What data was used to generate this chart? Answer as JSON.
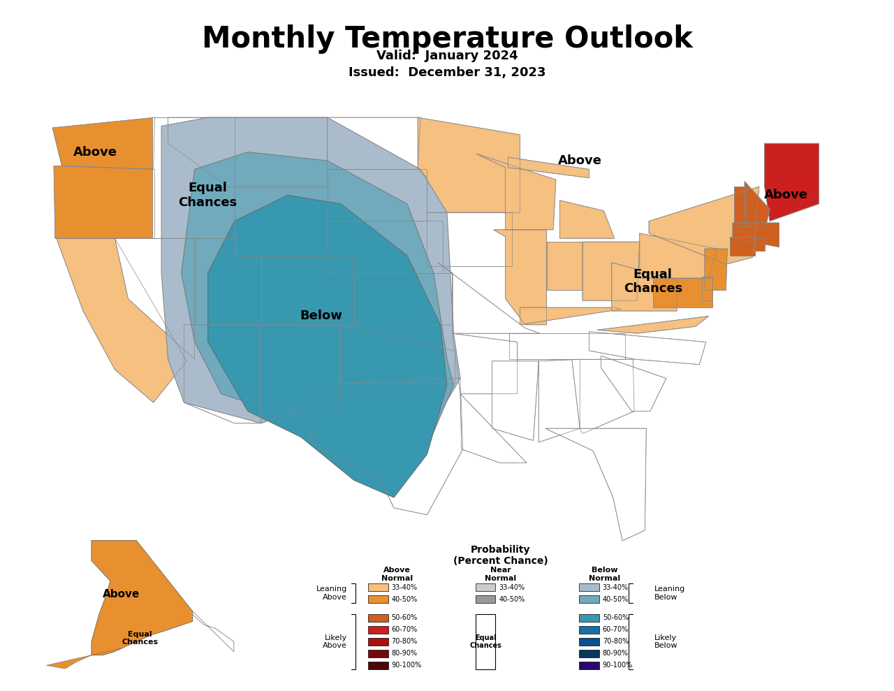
{
  "title": "Monthly Temperature Outlook",
  "valid_text": "Valid:  January 2024",
  "issued_text": "Issued:  December 31, 2023",
  "background_color": "#ffffff",
  "colors": {
    "above_33_40": "#F5C080",
    "above_40_50": "#E89030",
    "above_50_60": "#D06020",
    "above_60_70": "#CC2020",
    "above_70_80": "#AA1010",
    "above_80_90": "#780808",
    "above_90_100": "#4A0808",
    "near_33_40": "#CCCCCC",
    "near_40_50": "#999999",
    "equal_chances": "#FFFFFF",
    "below_33_40": "#AABCCC",
    "below_40_50": "#70AABC",
    "below_50_60": "#3898B0",
    "below_60_70": "#1870A8",
    "below_70_80": "#0850900",
    "below_80_90": "#083860",
    "below_90_100": "#280870"
  }
}
